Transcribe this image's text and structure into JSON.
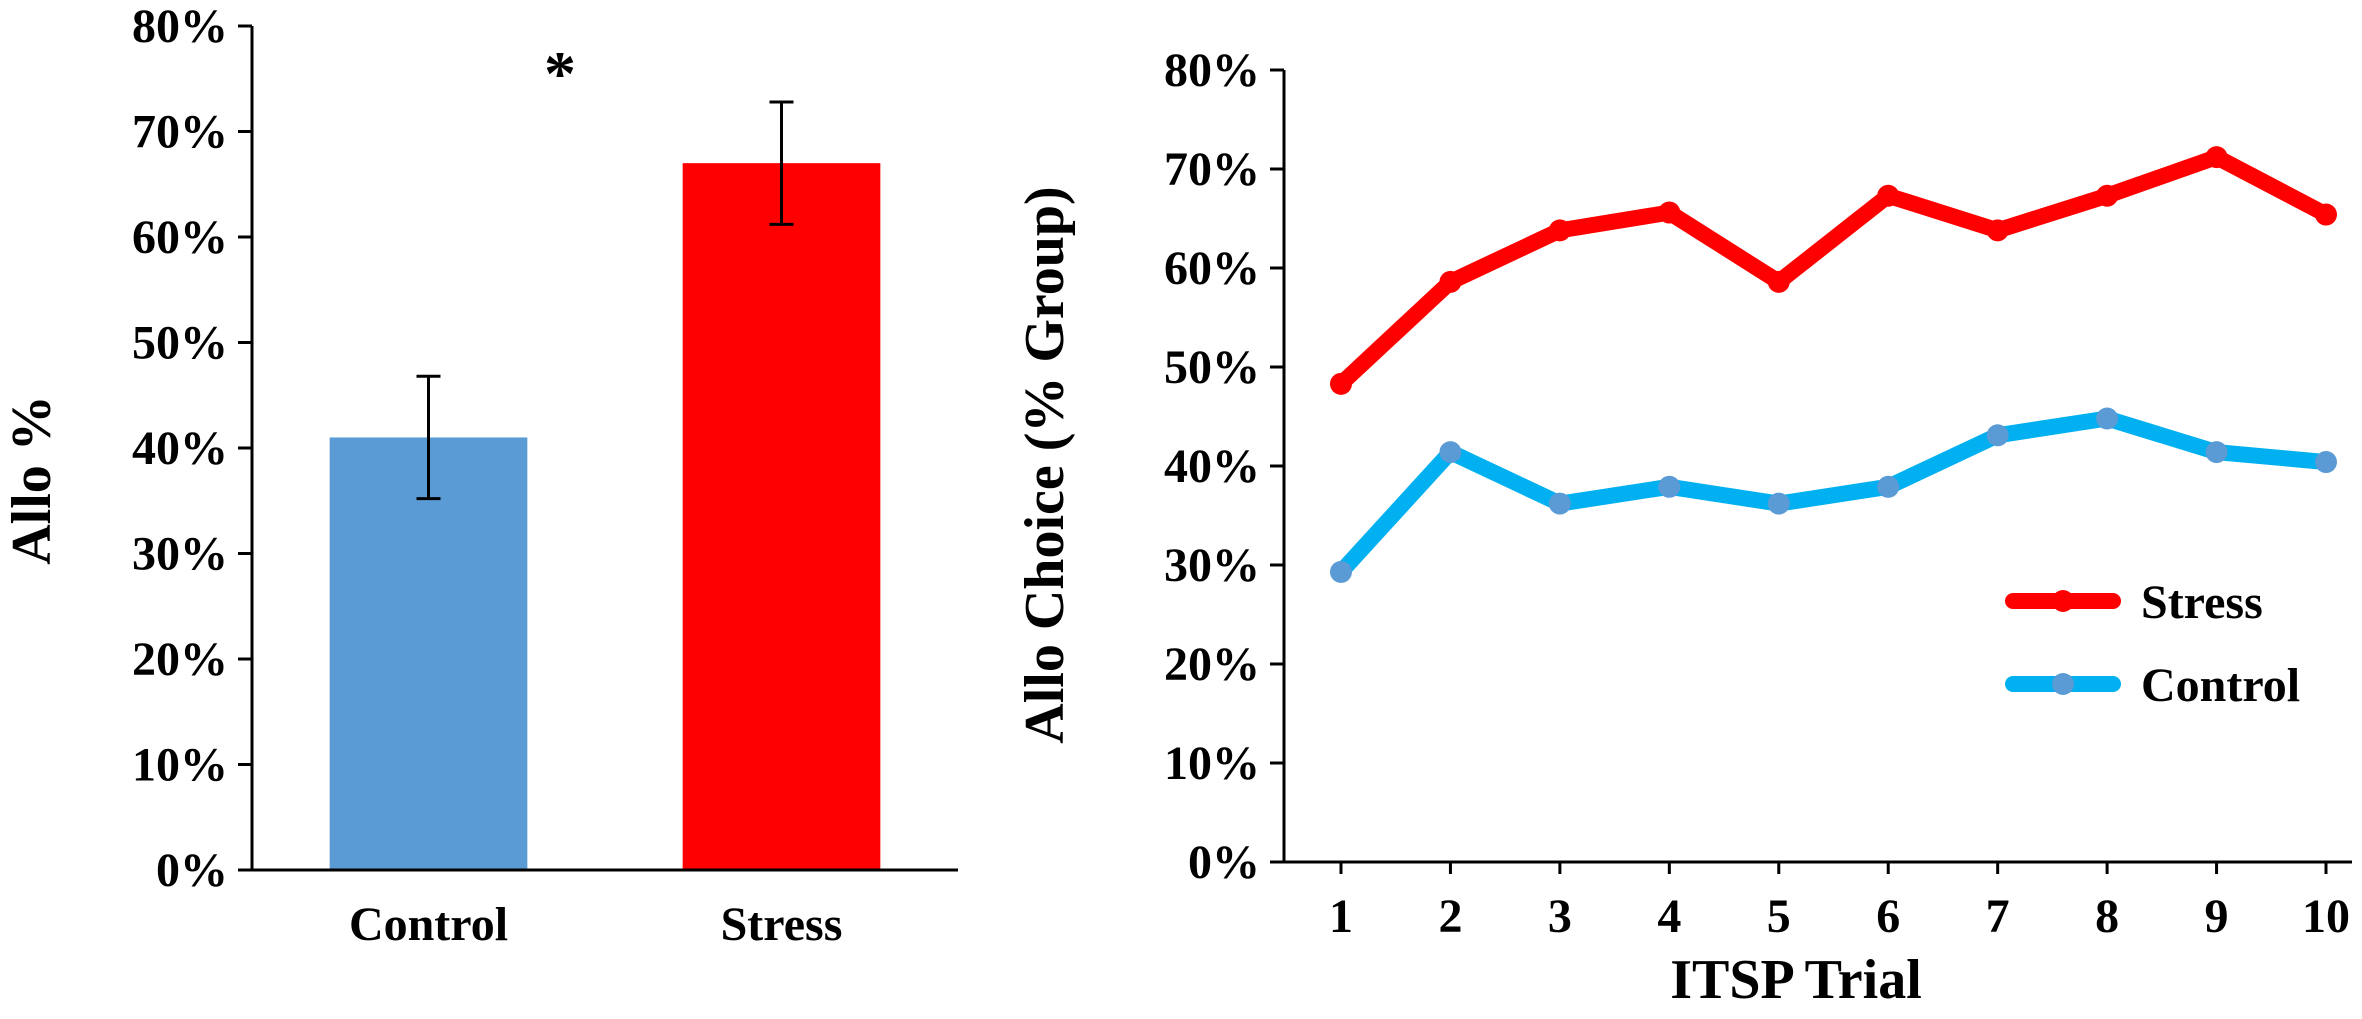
{
  "colors": {
    "control_bar": "#5b9bd5",
    "stress_bar": "#ff0000",
    "stress_line": "#ff0000",
    "control_line": "#00b0f0",
    "control_marker": "#5b9bd5",
    "axis": "#000000"
  },
  "chart_data": [
    {
      "type": "bar",
      "ylabel": "Allo %",
      "xlabel": "",
      "ylim": [
        0,
        80
      ],
      "yticks": [
        "0%",
        "10%",
        "20%",
        "30%",
        "40%",
        "50%",
        "60%",
        "70%",
        "80%"
      ],
      "categories": [
        "Control",
        "Stress"
      ],
      "values": [
        41,
        67
      ],
      "error": [
        5.8,
        5.8
      ],
      "annotation": "*",
      "grid": false
    },
    {
      "type": "line",
      "xlabel": "ITSP Trial",
      "ylabel": "Allo Choice (% Group)",
      "ylim": [
        0,
        80
      ],
      "yticks": [
        "0%",
        "10%",
        "20%",
        "30%",
        "40%",
        "50%",
        "60%",
        "70%",
        "80%"
      ],
      "x": [
        1,
        2,
        3,
        4,
        5,
        6,
        7,
        8,
        9,
        10
      ],
      "xticks": [
        "1",
        "2",
        "3",
        "4",
        "5",
        "6",
        "7",
        "8",
        "9",
        "10"
      ],
      "series": [
        {
          "name": "Stress",
          "values": [
            48.3,
            58.6,
            63.8,
            65.6,
            58.6,
            67.3,
            63.8,
            67.3,
            71.2,
            65.4
          ]
        },
        {
          "name": "Control",
          "values": [
            29.3,
            41.4,
            36.2,
            37.9,
            36.2,
            37.9,
            43.1,
            44.8,
            41.4,
            40.4
          ]
        }
      ],
      "legend_position": "bottom-right",
      "grid": false
    }
  ]
}
